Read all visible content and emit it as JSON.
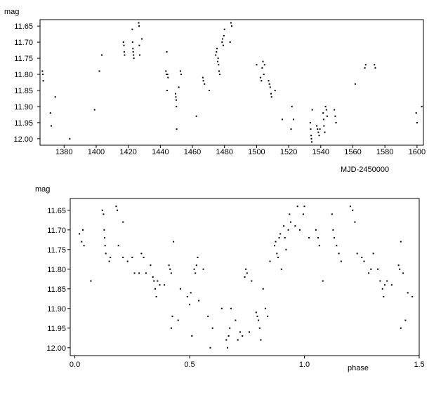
{
  "chart_data": [
    {
      "type": "scatter",
      "ylabel": "mag",
      "xlabel": "MJD-2450000",
      "xlim": [
        1365,
        1604
      ],
      "ylim": [
        11.63,
        12.02
      ],
      "y_inverted": true,
      "x_ticks": [
        1380,
        1400,
        1420,
        1440,
        1460,
        1480,
        1500,
        1520,
        1540,
        1560,
        1580,
        1600
      ],
      "y_ticks": [
        11.65,
        11.7,
        11.75,
        11.8,
        11.85,
        11.9,
        11.95,
        12.0
      ],
      "x_tick_labels": [
        "1380",
        "1400",
        "1420",
        "1440",
        "1460",
        "1480",
        "1500",
        "1520",
        "1540",
        "1560",
        "1580",
        "1600"
      ],
      "y_tick_labels": [
        "11.65",
        "11.70",
        "11.75",
        "11.80",
        "11.85",
        "11.90",
        "11.95",
        "12.00"
      ],
      "points": [
        [
          1366.5,
          11.79
        ],
        [
          1366.8,
          11.8
        ],
        [
          1367,
          11.82
        ],
        [
          1371.5,
          11.92
        ],
        [
          1372,
          11.96
        ],
        [
          1374.5,
          11.87
        ],
        [
          1383.5,
          12.0
        ],
        [
          1399,
          11.91
        ],
        [
          1402,
          11.79
        ],
        [
          1403.5,
          11.74
        ],
        [
          1417,
          11.7
        ],
        [
          1417.3,
          11.71
        ],
        [
          1417.5,
          11.73
        ],
        [
          1417.7,
          11.74
        ],
        [
          1422.5,
          11.66
        ],
        [
          1422.7,
          11.7
        ],
        [
          1422.9,
          11.72
        ],
        [
          1423.1,
          11.73
        ],
        [
          1423.3,
          11.74
        ],
        [
          1423.5,
          11.75
        ],
        [
          1426.5,
          11.64
        ],
        [
          1426.7,
          11.65
        ],
        [
          1426.9,
          11.71
        ],
        [
          1427.1,
          11.74
        ],
        [
          1428.5,
          11.69
        ],
        [
          1443.5,
          11.79
        ],
        [
          1443.8,
          11.8
        ],
        [
          1444,
          11.73
        ],
        [
          1444.2,
          11.85
        ],
        [
          1444.5,
          11.8
        ],
        [
          1444.8,
          11.81
        ],
        [
          1449.5,
          11.86
        ],
        [
          1449.7,
          11.87
        ],
        [
          1449.9,
          11.88
        ],
        [
          1450,
          11.9
        ],
        [
          1450.2,
          11.97
        ],
        [
          1451.5,
          11.84
        ],
        [
          1452.5,
          11.79
        ],
        [
          1453,
          11.8
        ],
        [
          1462.5,
          11.93
        ],
        [
          1466.5,
          11.81
        ],
        [
          1466.8,
          11.82
        ],
        [
          1467.5,
          11.83
        ],
        [
          1470.5,
          11.85
        ],
        [
          1474.5,
          11.74
        ],
        [
          1475,
          11.73
        ],
        [
          1475.3,
          11.72
        ],
        [
          1475.7,
          11.76
        ],
        [
          1476,
          11.75
        ],
        [
          1476.3,
          11.77
        ],
        [
          1476.6,
          11.79
        ],
        [
          1477,
          11.8
        ],
        [
          1478.5,
          11.7
        ],
        [
          1478.8,
          11.69
        ],
        [
          1479.2,
          11.71
        ],
        [
          1479.6,
          11.68
        ],
        [
          1480,
          11.66
        ],
        [
          1483.5,
          11.7
        ],
        [
          1484,
          11.64
        ],
        [
          1484.5,
          11.65
        ],
        [
          1500,
          11.77
        ],
        [
          1502.5,
          11.81
        ],
        [
          1503,
          11.82
        ],
        [
          1503.5,
          11.78
        ],
        [
          1504,
          11.76
        ],
        [
          1504.5,
          11.8
        ],
        [
          1505,
          11.77
        ],
        [
          1507.5,
          11.82
        ],
        [
          1508,
          11.83
        ],
        [
          1508.5,
          11.84
        ],
        [
          1509,
          11.86
        ],
        [
          1509.3,
          11.87
        ],
        [
          1511.5,
          11.85
        ],
        [
          1516,
          11.94
        ],
        [
          1521.5,
          11.97
        ],
        [
          1522,
          11.9
        ],
        [
          1523,
          11.94
        ],
        [
          1533.5,
          11.95
        ],
        [
          1533.7,
          11.97
        ],
        [
          1534,
          11.99
        ],
        [
          1534.2,
          12.0
        ],
        [
          1534.4,
          12.01
        ],
        [
          1534.7,
          11.91
        ],
        [
          1537.5,
          11.96
        ],
        [
          1538,
          11.97
        ],
        [
          1538.5,
          11.98
        ],
        [
          1539,
          11.99
        ],
        [
          1539.5,
          11.97
        ],
        [
          1541.5,
          11.92
        ],
        [
          1541.8,
          11.94
        ],
        [
          1542,
          11.96
        ],
        [
          1542.5,
          11.98
        ],
        [
          1543,
          11.9
        ],
        [
          1543.5,
          11.91
        ],
        [
          1544,
          11.93
        ],
        [
          1548.5,
          11.91
        ],
        [
          1549,
          11.93
        ],
        [
          1549.5,
          11.95
        ],
        [
          1561.5,
          11.83
        ],
        [
          1567.5,
          11.78
        ],
        [
          1568,
          11.77
        ],
        [
          1573.5,
          11.77
        ],
        [
          1574,
          11.78
        ],
        [
          1599.5,
          11.92
        ],
        [
          1600,
          11.95
        ],
        [
          1603,
          11.9
        ]
      ]
    },
    {
      "type": "scatter",
      "ylabel": "mag",
      "xlabel": "phase",
      "xlim": [
        -0.02,
        1.5
      ],
      "ylim": [
        11.62,
        12.02
      ],
      "y_inverted": true,
      "x_ticks": [
        0.0,
        0.5,
        1.0,
        1.5
      ],
      "y_ticks": [
        11.65,
        11.7,
        11.75,
        11.8,
        11.85,
        11.9,
        11.95,
        12.0
      ],
      "x_tick_labels": [
        "0.0",
        "0.5",
        "1.0",
        "1.5"
      ],
      "y_tick_labels": [
        "11.65",
        "11.70",
        "11.75",
        "11.80",
        "11.85",
        "11.90",
        "11.95",
        "12.00"
      ],
      "points": [
        [
          0.02,
          11.71
        ],
        [
          0.03,
          11.73
        ],
        [
          0.035,
          11.7
        ],
        [
          0.04,
          11.74
        ],
        [
          0.07,
          11.83
        ],
        [
          0.12,
          11.65
        ],
        [
          0.125,
          11.66
        ],
        [
          0.128,
          11.7
        ],
        [
          0.13,
          11.72
        ],
        [
          0.132,
          11.74
        ],
        [
          0.135,
          11.76
        ],
        [
          0.15,
          11.78
        ],
        [
          0.155,
          11.77
        ],
        [
          0.18,
          11.64
        ],
        [
          0.185,
          11.65
        ],
        [
          0.19,
          11.74
        ],
        [
          0.21,
          11.68
        ],
        [
          0.21,
          11.77
        ],
        [
          0.23,
          11.78
        ],
        [
          0.25,
          11.77
        ],
        [
          0.26,
          11.81
        ],
        [
          0.28,
          11.81
        ],
        [
          0.29,
          11.76
        ],
        [
          0.3,
          11.77
        ],
        [
          0.31,
          11.81
        ],
        [
          0.33,
          11.79
        ],
        [
          0.34,
          11.82
        ],
        [
          0.345,
          11.83
        ],
        [
          0.35,
          11.85
        ],
        [
          0.355,
          11.87
        ],
        [
          0.36,
          11.83
        ],
        [
          0.37,
          11.84
        ],
        [
          0.39,
          11.84
        ],
        [
          0.41,
          11.79
        ],
        [
          0.415,
          11.8
        ],
        [
          0.42,
          11.81
        ],
        [
          0.42,
          11.95
        ],
        [
          0.425,
          11.92
        ],
        [
          0.43,
          11.73
        ],
        [
          0.45,
          11.93
        ],
        [
          0.46,
          11.85
        ],
        [
          0.49,
          11.87
        ],
        [
          0.5,
          11.89
        ],
        [
          0.505,
          11.86
        ],
        [
          0.51,
          11.97
        ],
        [
          0.52,
          11.8
        ],
        [
          0.525,
          11.81
        ],
        [
          0.53,
          11.79
        ],
        [
          0.535,
          11.77
        ],
        [
          0.54,
          11.88
        ],
        [
          0.56,
          11.8
        ],
        [
          0.58,
          11.92
        ],
        [
          0.59,
          12.0
        ],
        [
          0.6,
          11.95
        ],
        [
          0.64,
          11.9
        ],
        [
          0.66,
          11.98
        ],
        [
          0.665,
          12.0
        ],
        [
          0.67,
          11.97
        ],
        [
          0.675,
          11.95
        ],
        [
          0.68,
          11.9
        ],
        [
          0.7,
          11.93
        ],
        [
          0.71,
          11.98
        ],
        [
          0.72,
          11.96
        ],
        [
          0.73,
          11.97
        ],
        [
          0.74,
          11.82
        ],
        [
          0.745,
          11.8
        ],
        [
          0.75,
          11.81
        ],
        [
          0.76,
          11.96
        ],
        [
          0.77,
          11.83
        ],
        [
          0.79,
          11.91
        ],
        [
          0.795,
          11.92
        ],
        [
          0.8,
          11.93
        ],
        [
          0.805,
          11.95
        ],
        [
          0.81,
          11.98
        ],
        [
          0.82,
          11.85
        ],
        [
          0.83,
          11.9
        ],
        [
          0.84,
          11.92
        ],
        [
          0.85,
          11.78
        ],
        [
          0.87,
          11.74
        ],
        [
          0.875,
          11.73
        ],
        [
          0.88,
          11.76
        ],
        [
          0.885,
          11.77
        ],
        [
          0.89,
          11.72
        ],
        [
          0.895,
          11.71
        ],
        [
          0.9,
          11.8
        ],
        [
          0.91,
          11.69
        ],
        [
          0.915,
          11.72
        ],
        [
          0.92,
          11.75
        ],
        [
          0.93,
          11.7
        ],
        [
          0.935,
          11.66
        ],
        [
          0.94,
          11.68
        ],
        [
          0.96,
          11.69
        ],
        [
          0.97,
          11.64
        ],
        [
          0.98,
          11.7
        ],
        [
          0.995,
          11.66
        ],
        [
          1.0,
          11.64
        ],
        [
          1.02,
          11.72
        ],
        [
          1.05,
          11.7
        ],
        [
          1.06,
          11.72
        ],
        [
          1.065,
          11.74
        ],
        [
          1.08,
          11.83
        ],
        [
          1.12,
          11.66
        ],
        [
          1.125,
          11.7
        ],
        [
          1.13,
          11.72
        ],
        [
          1.14,
          11.74
        ],
        [
          1.15,
          11.76
        ],
        [
          1.16,
          11.78
        ],
        [
          1.2,
          11.64
        ],
        [
          1.21,
          11.65
        ],
        [
          1.22,
          11.68
        ],
        [
          1.23,
          11.76
        ],
        [
          1.25,
          11.77
        ],
        [
          1.26,
          11.78
        ],
        [
          1.28,
          11.81
        ],
        [
          1.29,
          11.8
        ],
        [
          1.3,
          11.76
        ],
        [
          1.32,
          11.8
        ],
        [
          1.33,
          11.83
        ],
        [
          1.34,
          11.85
        ],
        [
          1.345,
          11.87
        ],
        [
          1.35,
          11.84
        ],
        [
          1.36,
          11.83
        ],
        [
          1.38,
          11.84
        ],
        [
          1.41,
          11.79
        ],
        [
          1.415,
          11.8
        ],
        [
          1.42,
          11.73
        ],
        [
          1.42,
          11.95
        ],
        [
          1.43,
          11.81
        ],
        [
          1.44,
          11.93
        ],
        [
          1.45,
          11.86
        ],
        [
          1.47,
          11.87
        ]
      ]
    }
  ]
}
